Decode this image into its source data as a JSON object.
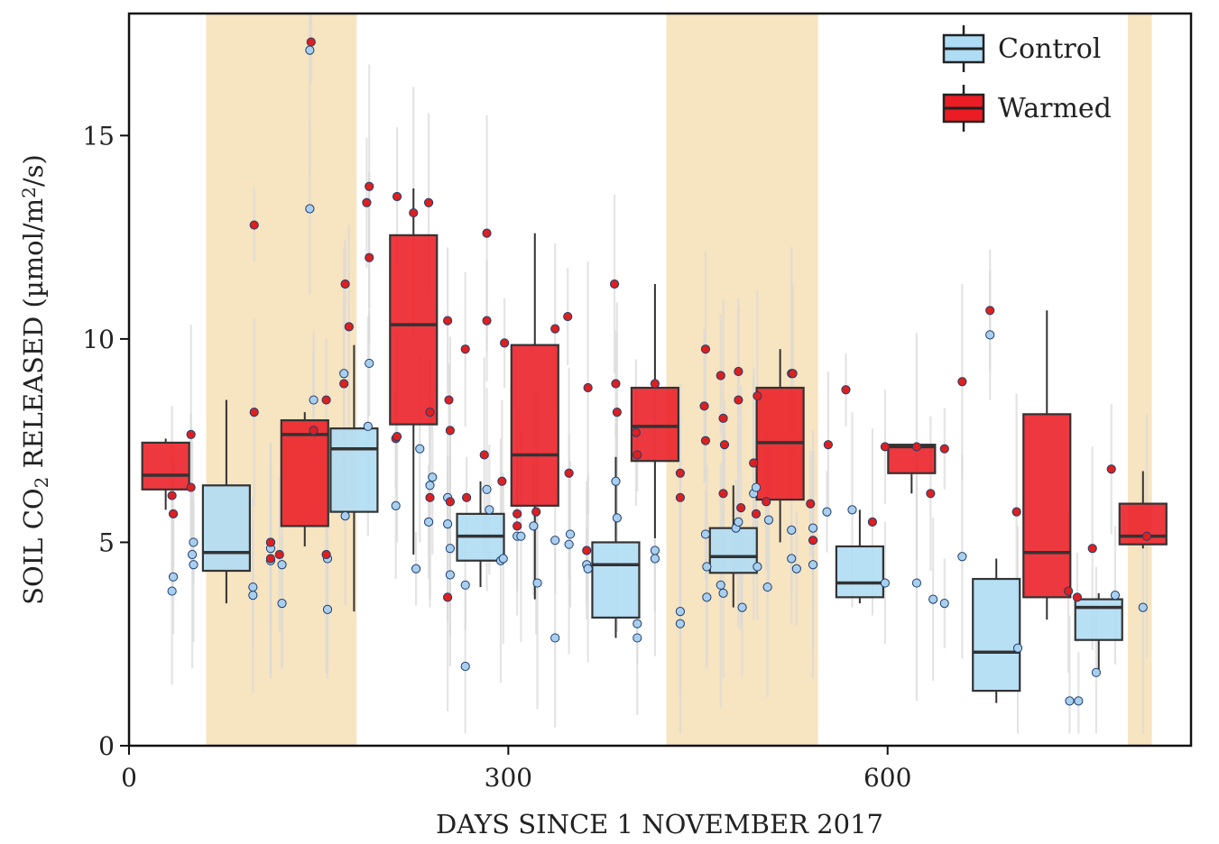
{
  "chart_data": {
    "type": "box",
    "xlabel": "DAYS SINCE 1 NOVEMBER 2017",
    "ylabel": {
      "parts": [
        {
          "text": "SOIL CO",
          "shift": "none"
        },
        {
          "text": "2",
          "shift": "sub"
        },
        {
          "text": " RELEASED (µmol/m",
          "shift": "none"
        },
        {
          "text": "2",
          "shift": "super"
        },
        {
          "text": "/s)",
          "shift": "none"
        }
      ]
    },
    "xlim": [
      0,
      840
    ],
    "ylim": [
      0,
      18
    ],
    "x_ticks": [
      0,
      300,
      600
    ],
    "y_ticks": [
      0,
      5,
      10,
      15
    ],
    "shaded_x_ranges": [
      [
        61,
        180
      ],
      [
        425,
        545
      ],
      [
        790,
        809
      ]
    ],
    "shade_color": "#f7e4c0",
    "legend": {
      "position": "top-right",
      "entries": [
        {
          "label": "Control",
          "color": "#aedcf4"
        },
        {
          "label": "Warmed",
          "color": "#ec1c24"
        }
      ]
    },
    "series": [
      {
        "name": "Control",
        "color": "#aedcf4",
        "point_color": "#a9cfee",
        "boxes": [
          {
            "x": 77,
            "q1": 4.3,
            "median": 4.75,
            "q3": 6.4,
            "whisker_low": 3.5,
            "whisker_high": 8.5
          },
          {
            "x": 178,
            "q1": 5.75,
            "median": 7.3,
            "q3": 7.8,
            "whisker_low": 3.3,
            "whisker_high": 9.85
          },
          {
            "x": 278,
            "q1": 4.55,
            "median": 5.15,
            "q3": 5.7,
            "whisker_low": 3.9,
            "whisker_high": 6.5
          },
          {
            "x": 385,
            "q1": 3.15,
            "median": 4.45,
            "q3": 5.0,
            "whisker_low": 2.65,
            "whisker_high": 7.1
          },
          {
            "x": 478,
            "q1": 4.25,
            "median": 4.65,
            "q3": 5.35,
            "whisker_low": 3.4,
            "whisker_high": 6.4
          },
          {
            "x": 578,
            "q1": 3.65,
            "median": 4.0,
            "q3": 4.9,
            "whisker_low": 3.5,
            "whisker_high": 5.8
          },
          {
            "x": 686,
            "q1": 1.35,
            "median": 2.3,
            "q3": 4.1,
            "whisker_low": 1.05,
            "whisker_high": 4.6
          },
          {
            "x": 767,
            "q1": 2.6,
            "median": 3.4,
            "q3": 3.6,
            "whisker_low": 1.8,
            "whisker_high": 3.75
          }
        ],
        "points": [
          [
            34,
            3.8
          ],
          [
            35,
            4.15
          ],
          [
            50,
            4.7
          ],
          [
            51,
            4.45
          ],
          [
            51,
            5.0
          ],
          [
            98,
            3.7
          ],
          [
            98,
            3.9
          ],
          [
            112,
            4.55
          ],
          [
            112,
            4.85
          ],
          [
            112,
            5.0
          ],
          [
            121,
            4.45
          ],
          [
            121,
            3.5
          ],
          [
            143,
            17.1
          ],
          [
            143,
            13.2
          ],
          [
            146,
            8.5
          ],
          [
            157,
            4.6
          ],
          [
            157,
            3.35
          ],
          [
            170,
            9.15
          ],
          [
            171,
            5.65
          ],
          [
            190,
            9.4
          ],
          [
            189,
            7.85
          ],
          [
            211,
            5.9
          ],
          [
            227,
            4.35
          ],
          [
            230,
            7.3
          ],
          [
            237,
            5.5
          ],
          [
            238,
            6.4
          ],
          [
            240,
            6.6
          ],
          [
            252,
            6.1
          ],
          [
            252,
            5.45
          ],
          [
            254,
            4.2
          ],
          [
            254,
            4.85
          ],
          [
            266,
            1.95
          ],
          [
            266,
            3.95
          ],
          [
            283,
            6.3
          ],
          [
            285,
            5.8
          ],
          [
            294,
            4.55
          ],
          [
            296,
            4.6
          ],
          [
            307,
            5.15
          ],
          [
            310,
            5.15
          ],
          [
            320,
            5.4
          ],
          [
            323,
            4.0
          ],
          [
            337,
            2.65
          ],
          [
            337,
            5.05
          ],
          [
            348,
            4.95
          ],
          [
            349,
            5.2
          ],
          [
            362,
            4.45
          ],
          [
            363,
            4.35
          ],
          [
            385,
            6.5
          ],
          [
            386,
            5.6
          ],
          [
            402,
            2.65
          ],
          [
            402,
            3.0
          ],
          [
            416,
            4.6
          ],
          [
            416,
            4.8
          ],
          [
            436,
            3.0
          ],
          [
            436,
            3.3
          ],
          [
            456,
            5.2
          ],
          [
            457,
            4.4
          ],
          [
            457,
            3.65
          ],
          [
            468,
            3.95
          ],
          [
            470,
            3.75
          ],
          [
            480,
            5.35
          ],
          [
            482,
            5.5
          ],
          [
            485,
            3.4
          ],
          [
            494,
            6.2
          ],
          [
            496,
            6.35
          ],
          [
            497,
            4.4
          ],
          [
            505,
            3.9
          ],
          [
            506,
            5.55
          ],
          [
            524,
            4.6
          ],
          [
            524,
            5.3
          ],
          [
            528,
            4.35
          ],
          [
            541,
            4.45
          ],
          [
            541,
            5.35
          ],
          [
            552,
            5.75
          ],
          [
            572,
            5.8
          ],
          [
            598,
            4.0
          ],
          [
            623,
            4.0
          ],
          [
            636,
            3.6
          ],
          [
            645,
            3.5
          ],
          [
            659,
            4.65
          ],
          [
            681,
            10.1
          ],
          [
            703,
            2.4
          ],
          [
            744,
            1.1
          ],
          [
            751,
            1.1
          ],
          [
            765,
            1.8
          ],
          [
            780,
            3.7
          ],
          [
            802,
            3.4
          ]
        ]
      },
      {
        "name": "Warmed",
        "color": "#ec1c24",
        "point_color": "#dc2020",
        "boxes": [
          {
            "x": 29,
            "q1": 6.3,
            "median": 6.65,
            "q3": 7.45,
            "whisker_low": 5.8,
            "whisker_high": 7.55
          },
          {
            "x": 139,
            "q1": 5.4,
            "median": 7.65,
            "q3": 8.0,
            "whisker_low": 4.9,
            "whisker_high": 8.2
          },
          {
            "x": 225,
            "q1": 7.9,
            "median": 10.35,
            "q3": 12.55,
            "whisker_low": 4.7,
            "whisker_high": 13.7
          },
          {
            "x": 321,
            "q1": 5.9,
            "median": 7.15,
            "q3": 9.85,
            "whisker_low": 3.6,
            "whisker_high": 12.6
          },
          {
            "x": 416,
            "q1": 7.0,
            "median": 7.85,
            "q3": 8.8,
            "whisker_low": 5.1,
            "whisker_high": 11.35
          },
          {
            "x": 515,
            "q1": 6.05,
            "median": 7.45,
            "q3": 8.8,
            "whisker_low": 5.0,
            "whisker_high": 9.75
          },
          {
            "x": 619,
            "q1": 6.7,
            "median": 7.35,
            "q3": 7.4,
            "whisker_low": 6.2,
            "whisker_high": 7.4
          },
          {
            "x": 726,
            "q1": 3.65,
            "median": 4.75,
            "q3": 8.15,
            "whisker_low": 3.1,
            "whisker_high": 10.7
          },
          {
            "x": 802,
            "q1": 4.95,
            "median": 5.15,
            "q3": 5.95,
            "whisker_low": 4.85,
            "whisker_high": 6.75
          }
        ],
        "points": [
          [
            34,
            6.15
          ],
          [
            35,
            5.7
          ],
          [
            49,
            7.65
          ],
          [
            49,
            6.35
          ],
          [
            99,
            12.8
          ],
          [
            99,
            8.2
          ],
          [
            112,
            5.0
          ],
          [
            112,
            4.6
          ],
          [
            119,
            4.7
          ],
          [
            144,
            17.3
          ],
          [
            146,
            7.75
          ],
          [
            156,
            8.5
          ],
          [
            156,
            4.7
          ],
          [
            170,
            8.9
          ],
          [
            171,
            11.35
          ],
          [
            174,
            10.3
          ],
          [
            188,
            13.35
          ],
          [
            190,
            13.75
          ],
          [
            190,
            12.0
          ],
          [
            211,
            7.55
          ],
          [
            212,
            7.6
          ],
          [
            212,
            13.5
          ],
          [
            225,
            13.1
          ],
          [
            237,
            13.35
          ],
          [
            238,
            8.2
          ],
          [
            238,
            6.1
          ],
          [
            252,
            10.45
          ],
          [
            253,
            8.5
          ],
          [
            254,
            7.75
          ],
          [
            254,
            6.0
          ],
          [
            252,
            3.65
          ],
          [
            266,
            9.75
          ],
          [
            267,
            6.1
          ],
          [
            281,
            7.15
          ],
          [
            283,
            10.45
          ],
          [
            283,
            12.6
          ],
          [
            295,
            6.5
          ],
          [
            297,
            9.9
          ],
          [
            307,
            5.7
          ],
          [
            307,
            5.4
          ],
          [
            322,
            5.75
          ],
          [
            337,
            10.25
          ],
          [
            347,
            10.55
          ],
          [
            348,
            6.7
          ],
          [
            362,
            4.8
          ],
          [
            363,
            8.8
          ],
          [
            384,
            11.35
          ],
          [
            385,
            8.9
          ],
          [
            386,
            8.2
          ],
          [
            401,
            7.7
          ],
          [
            402,
            7.15
          ],
          [
            416,
            8.9
          ],
          [
            436,
            6.7
          ],
          [
            436,
            6.1
          ],
          [
            455,
            8.35
          ],
          [
            456,
            7.5
          ],
          [
            456,
            9.75
          ],
          [
            468,
            9.1
          ],
          [
            470,
            8.05
          ],
          [
            470,
            6.2
          ],
          [
            471,
            7.4
          ],
          [
            482,
            8.5
          ],
          [
            482,
            9.2
          ],
          [
            484,
            5.85
          ],
          [
            494,
            6.95
          ],
          [
            496,
            5.7
          ],
          [
            497,
            8.6
          ],
          [
            504,
            6.0
          ],
          [
            524,
            9.15
          ],
          [
            525,
            9.15
          ],
          [
            539,
            5.95
          ],
          [
            541,
            5.05
          ],
          [
            553,
            7.4
          ],
          [
            567,
            8.75
          ],
          [
            588,
            5.5
          ],
          [
            598,
            7.35
          ],
          [
            623,
            7.35
          ],
          [
            634,
            6.2
          ],
          [
            645,
            7.3
          ],
          [
            659,
            8.95
          ],
          [
            681,
            10.7
          ],
          [
            702,
            5.75
          ],
          [
            743,
            3.8
          ],
          [
            750,
            3.65
          ],
          [
            762,
            4.85
          ],
          [
            777,
            6.8
          ],
          [
            805,
            5.15
          ]
        ]
      }
    ]
  }
}
